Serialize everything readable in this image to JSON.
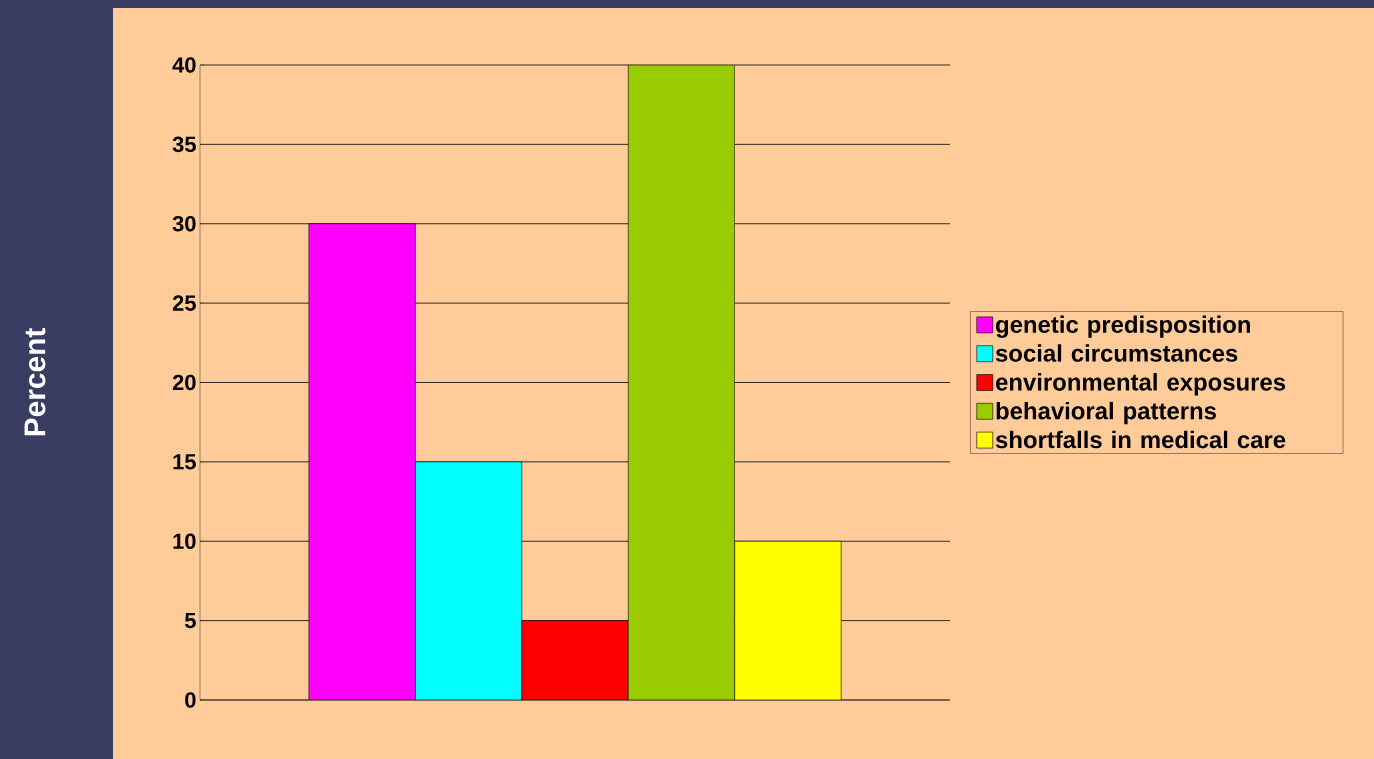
{
  "chart_data": {
    "type": "bar",
    "ylabel": "Percent",
    "categories": [
      null
    ],
    "series": [
      {
        "name": "genetic predisposition",
        "color": "#ff00ff",
        "values": [
          30
        ]
      },
      {
        "name": "social circumstances",
        "color": "#00ffff",
        "values": [
          15
        ]
      },
      {
        "name": "environmental exposures",
        "color": "#ff0000",
        "values": [
          5
        ]
      },
      {
        "name": "behavioral patterns",
        "color": "#99cc00",
        "values": [
          40
        ]
      },
      {
        "name": "shortfalls in medical care",
        "color": "#ffff00",
        "values": [
          10
        ]
      }
    ],
    "ylim": [
      0,
      40
    ],
    "yticks": [
      0,
      5,
      10,
      15,
      20,
      25,
      30,
      35,
      40
    ],
    "grid": "y",
    "legend": "right"
  }
}
